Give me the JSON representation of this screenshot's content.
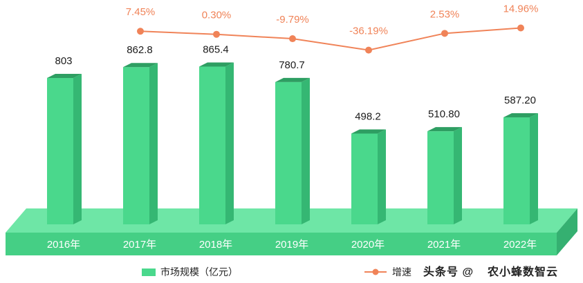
{
  "chart_data": {
    "type": "bar",
    "categories": [
      "2016年",
      "2017年",
      "2018年",
      "2019年",
      "2020年",
      "2021年",
      "2022年"
    ],
    "value_labels": [
      "803",
      "862.8",
      "865.4",
      "780.7",
      "498.2",
      "510.80",
      "587.20"
    ],
    "series": [
      {
        "name": "市场规模（亿元）",
        "values": [
          803,
          862.8,
          865.4,
          780.7,
          498.2,
          510.8,
          587.2
        ]
      },
      {
        "name": "增速",
        "values": [
          null,
          7.45,
          0.3,
          -9.79,
          -36.19,
          2.53,
          14.96
        ]
      }
    ],
    "rate_labels": [
      "",
      "7.45%",
      "0.30%",
      "-9.79%",
      "-36.19%",
      "2.53%",
      "14.96%"
    ],
    "ylim": [
      0,
      1000
    ],
    "rate_ylim": [
      -40,
      15
    ],
    "legend_position": "bottom",
    "colors": {
      "bar_front": "#4ad88c",
      "bar_side": "#35b773",
      "bar_top": "#2e9e62",
      "base_top": "#6ee6a6",
      "base_front": "#45cf85",
      "base_side": "#35b071",
      "line": "#f08358"
    }
  },
  "footer": {
    "brand": "农小蜂数智云",
    "platform": "头条号 @"
  }
}
